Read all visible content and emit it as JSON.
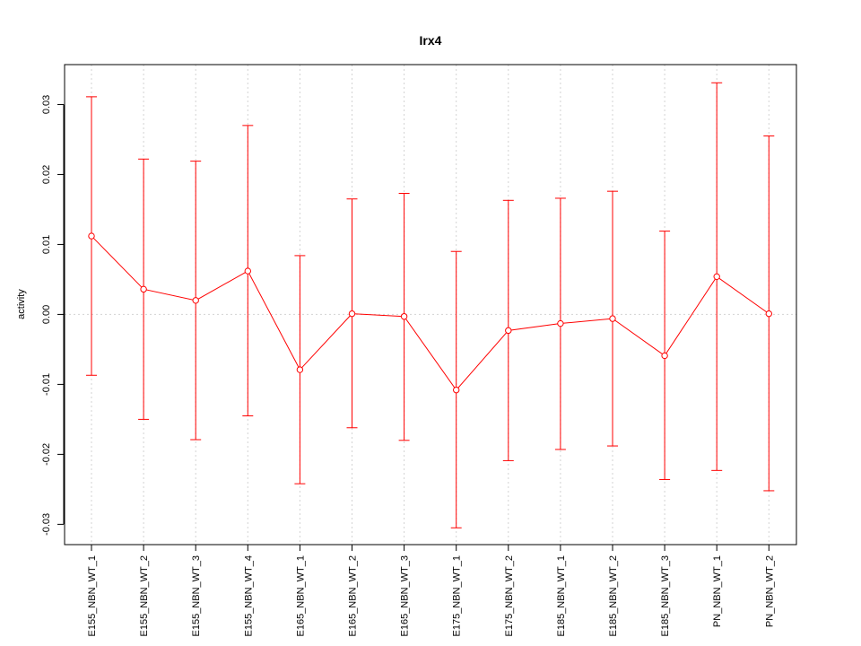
{
  "chart_data": {
    "type": "line",
    "title": "Irx4",
    "xlabel": "",
    "ylabel": "activity",
    "categories": [
      "E155_NBN_WT_1",
      "E155_NBN_WT_2",
      "E155_NBN_WT_3",
      "E155_NBN_WT_4",
      "E165_NBN_WT_1",
      "E165_NBN_WT_2",
      "E165_NBN_WT_3",
      "E175_NBN_WT_1",
      "E175_NBN_WT_2",
      "E185_NBN_WT_1",
      "E185_NBN_WT_2",
      "E185_NBN_WT_3",
      "PN_NBN_WT_1",
      "PN_NBN_WT_2"
    ],
    "values": [
      0.0112,
      0.0036,
      0.002,
      0.0062,
      -0.0079,
      0.0001,
      -0.0003,
      -0.0108,
      -0.0023,
      -0.0013,
      -0.0006,
      -0.0059,
      0.0054,
      0.0001
    ],
    "upper": [
      0.0311,
      0.0222,
      0.0219,
      0.027,
      0.0084,
      0.0165,
      0.0173,
      0.009,
      0.0163,
      0.0166,
      0.0176,
      0.0119,
      0.0331,
      0.0255
    ],
    "lower": [
      -0.0087,
      -0.015,
      -0.0179,
      -0.0145,
      -0.0242,
      -0.0162,
      -0.018,
      -0.0305,
      -0.0209,
      -0.0193,
      -0.0188,
      -0.0236,
      -0.0223,
      -0.0252
    ],
    "yticks": [
      -0.03,
      -0.02,
      -0.01,
      0.0,
      0.01,
      0.02,
      0.03
    ],
    "ytick_labels": [
      "-0.03",
      "-0.02",
      "-0.01",
      "0.00",
      "0.01",
      "0.02",
      "0.03"
    ],
    "ylim": [
      -0.0329,
      0.0357
    ],
    "grid": true,
    "colors": {
      "series": "#ff0000",
      "grid": "#d3d3d3",
      "axis": "#000000"
    }
  }
}
